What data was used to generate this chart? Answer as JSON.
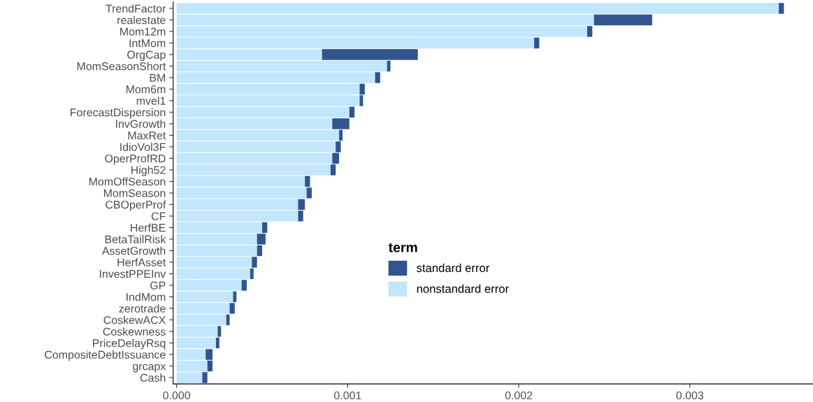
{
  "chart_data": {
    "type": "bar",
    "orientation": "horizontal",
    "stacked": true,
    "categories": [
      "TrendFactor",
      "realestate",
      "Mom12m",
      "IntMom",
      "OrgCap",
      "MomSeasonShort",
      "BM",
      "Mom6m",
      "mvel1",
      "ForecastDispersion",
      "InvGrowth",
      "MaxRet",
      "IdioVol3F",
      "OperProfRD",
      "High52",
      "MomOffSeason",
      "MomSeason",
      "CBOperProf",
      "CF",
      "HerfBE",
      "BetaTailRisk",
      "AssetGrowth",
      "HerfAsset",
      "InvestPPEInv",
      "GP",
      "IndMom",
      "zerotrade",
      "CoskewACX",
      "Coskewness",
      "PriceDelayRsq",
      "CompositeDebtIssuance",
      "grcapx",
      "Cash"
    ],
    "series": [
      {
        "name": "nonstandard error",
        "color": "#c2e7fd",
        "values": [
          0.00352,
          0.00244,
          0.0024,
          0.00209,
          0.00085,
          0.00123,
          0.00116,
          0.00107,
          0.00107,
          0.00101,
          0.00091,
          0.00095,
          0.00093,
          0.00091,
          0.0009,
          0.00075,
          0.00076,
          0.00071,
          0.00071,
          0.0005,
          0.00047,
          0.00047,
          0.00044,
          0.00043,
          0.00038,
          0.00033,
          0.00031,
          0.00029,
          0.00024,
          0.00023,
          0.00017,
          0.00018,
          0.00015
        ]
      },
      {
        "name": "standard error",
        "color": "#32548e",
        "values": [
          3e-05,
          0.00034,
          3e-05,
          3e-05,
          0.00056,
          2e-05,
          3e-05,
          3e-05,
          2e-05,
          3e-05,
          0.0001,
          2e-05,
          3e-05,
          4e-05,
          3e-05,
          3e-05,
          3e-05,
          4e-05,
          3e-05,
          3e-05,
          5e-05,
          3e-05,
          3e-05,
          2e-05,
          3e-05,
          2e-05,
          3e-05,
          2e-05,
          2e-05,
          2e-05,
          4e-05,
          3e-05,
          3e-05
        ]
      }
    ],
    "legend_title": "term",
    "legend": "bottom",
    "xlim": [
      -2e-05,
      0.00372
    ],
    "xticks": [
      {
        "value": 0,
        "label": "0.000"
      },
      {
        "value": 0.001,
        "label": "0.001"
      },
      {
        "value": 0.002,
        "label": "0.002"
      },
      {
        "value": 0.003,
        "label": "0.003"
      }
    ],
    "grid": false
  }
}
